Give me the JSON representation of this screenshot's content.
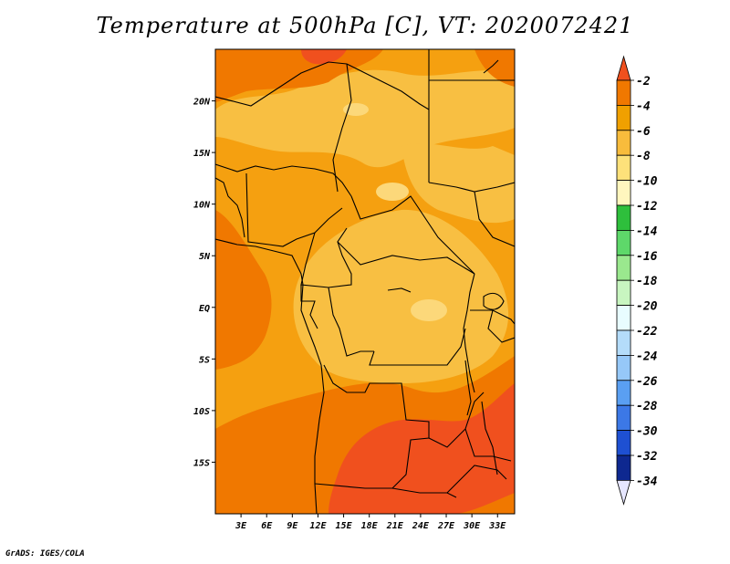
{
  "title": "Temperature at 500hPa [C], VT: 2020072421",
  "credit": "GrADS: IGES/COLA",
  "map": {
    "lon_range": [
      0,
      35
    ],
    "lat_range": [
      -20,
      25
    ],
    "x_ticks": [
      {
        "lon": 3,
        "label": "3E"
      },
      {
        "lon": 6,
        "label": "6E"
      },
      {
        "lon": 9,
        "label": "9E"
      },
      {
        "lon": 12,
        "label": "12E"
      },
      {
        "lon": 15,
        "label": "15E"
      },
      {
        "lon": 18,
        "label": "18E"
      },
      {
        "lon": 21,
        "label": "21E"
      },
      {
        "lon": 24,
        "label": "24E"
      },
      {
        "lon": 27,
        "label": "27E"
      },
      {
        "lon": 30,
        "label": "30E"
      },
      {
        "lon": 33,
        "label": "33E"
      }
    ],
    "y_ticks": [
      {
        "lat": 20,
        "label": "20N"
      },
      {
        "lat": 15,
        "label": "15N"
      },
      {
        "lat": 10,
        "label": "10N"
      },
      {
        "lat": 5,
        "label": "5N"
      },
      {
        "lat": 0,
        "label": "EQ"
      },
      {
        "lat": -5,
        "label": "5S"
      },
      {
        "lat": -10,
        "label": "10S"
      },
      {
        "lat": -15,
        "label": "15S"
      }
    ]
  },
  "colorbar": {
    "labels": [
      "-2",
      "-4",
      "-6",
      "-8",
      "-10",
      "-12",
      "-14",
      "-16",
      "-18",
      "-20",
      "-22",
      "-24",
      "-26",
      "-28",
      "-30",
      "-32",
      "-34"
    ],
    "colors": [
      "#f0501e",
      "#f07800",
      "#f0a000",
      "#f8bc3c",
      "#fde17a",
      "#fff6be",
      "#2ebf3c",
      "#5ed86a",
      "#9ae88e",
      "#c8f5c0",
      "#e8fcff",
      "#b4dcfa",
      "#96c8f8",
      "#5a9ff2",
      "#3c78e6",
      "#1e50d2",
      "#0e2890",
      "#0a1666"
    ],
    "top_triangle_color": "#f0501e",
    "bottom_triangle_color": "#e6e6ff"
  },
  "field_colors": {
    "m2": "#f0501e",
    "m4": "#f07800",
    "m6": "#f5a010",
    "m8": "#f8bf42",
    "m10": "#fcd87a"
  }
}
